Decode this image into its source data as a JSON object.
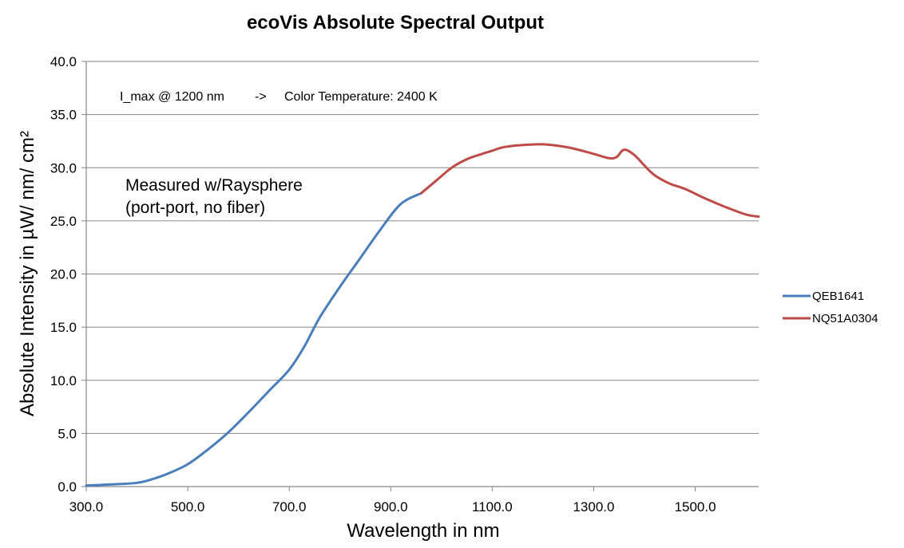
{
  "chart_data": {
    "type": "line",
    "title": "ecoVis Absolute Spectral Output",
    "xlabel": "Wavelength in nm",
    "ylabel": "Absolute Intensity in µW/ nm/ cm²",
    "xlim": [
      300,
      1625
    ],
    "ylim": [
      0,
      40
    ],
    "grid": "horizontal",
    "legend_position": "right",
    "x_ticks": [
      "300.0",
      "500.0",
      "700.0",
      "900.0",
      "1100.0",
      "1300.0",
      "1500.0"
    ],
    "x_tick_values": [
      300,
      500,
      700,
      900,
      1100,
      1300,
      1500
    ],
    "y_ticks": [
      "0.0",
      "5.0",
      "10.0",
      "15.0",
      "20.0",
      "25.0",
      "30.0",
      "35.0",
      "40.0"
    ],
    "y_tick_values": [
      0,
      5,
      10,
      15,
      20,
      25,
      30,
      35,
      40
    ],
    "annotations": {
      "lmax": "I_max @ 1200 nm",
      "arrow": "->",
      "color_temp": "Color Temperature: 2400 K",
      "measured_line1": "Measured w/Raysphere",
      "measured_line2": "(port-port, no fiber)"
    },
    "series": [
      {
        "name": "QEB1641",
        "color": "#4a7ebb",
        "x": [
          300,
          350,
          400,
          430,
          460,
          500,
          540,
          580,
          620,
          660,
          700,
          730,
          760,
          800,
          840,
          880,
          920,
          960
        ],
        "y": [
          0.1,
          0.2,
          0.35,
          0.7,
          1.2,
          2.1,
          3.5,
          5.1,
          7.0,
          9.0,
          11.0,
          13.2,
          15.9,
          18.8,
          21.5,
          24.2,
          26.6,
          27.6
        ]
      },
      {
        "name": "NQ51A0304",
        "color": "#be4b48",
        "x": [
          960,
          990,
          1020,
          1050,
          1080,
          1100,
          1120,
          1150,
          1200,
          1250,
          1300,
          1330,
          1345,
          1360,
          1380,
          1400,
          1420,
          1450,
          1480,
          1520,
          1560,
          1600,
          1625
        ],
        "y": [
          27.6,
          28.8,
          30.0,
          30.8,
          31.3,
          31.6,
          31.9,
          32.1,
          32.2,
          31.9,
          31.3,
          30.9,
          31.0,
          31.7,
          31.2,
          30.2,
          29.3,
          28.5,
          28.0,
          27.1,
          26.3,
          25.6,
          25.4
        ]
      }
    ]
  }
}
